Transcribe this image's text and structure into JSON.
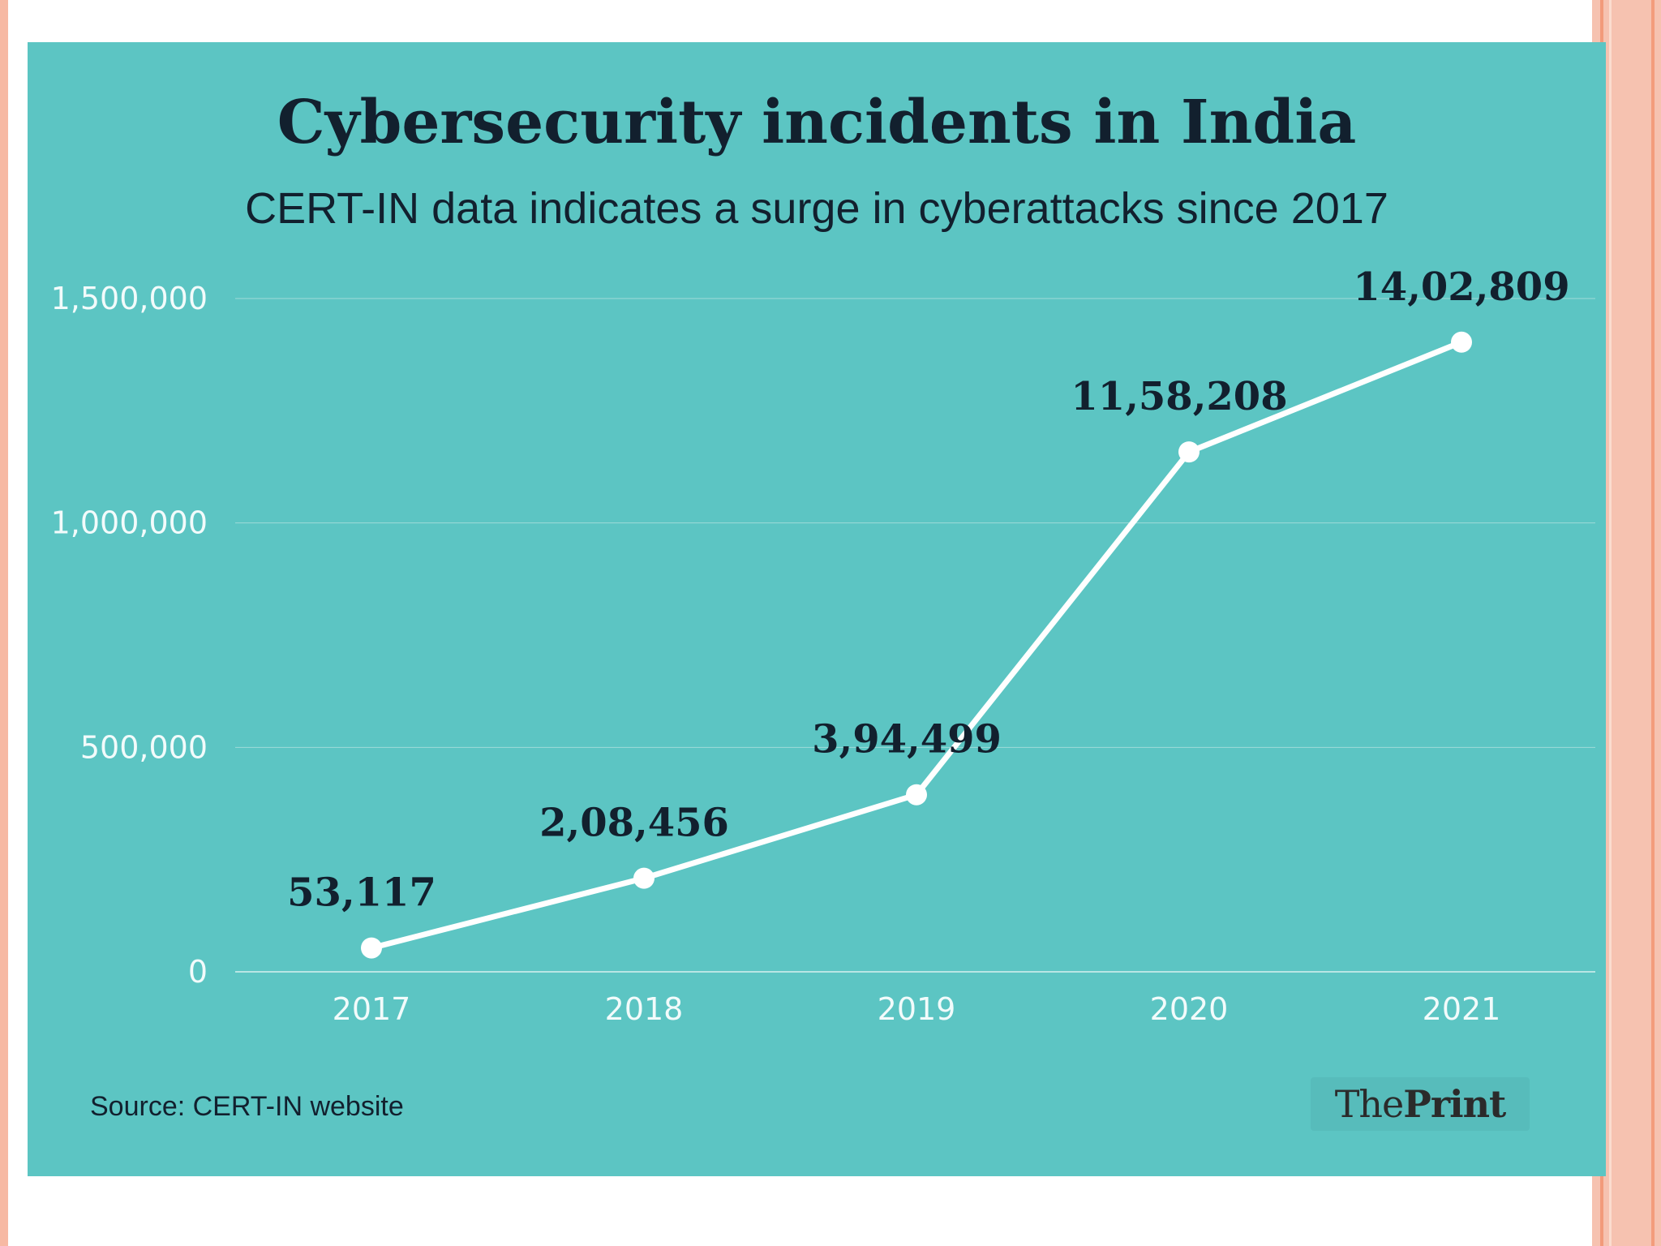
{
  "title": "Cybersecurity incidents in India",
  "subtitle": "CERT-IN data indicates a surge in cyberattacks since 2017",
  "source": "Source: CERT-IN website",
  "logo": {
    "part1": "The",
    "part2": "Print"
  },
  "colors": {
    "panel": "#5cc5c3",
    "text": "#12202e",
    "line": "#ffffff",
    "grid": "#9fdbd9",
    "axis_text": "#f2fbfb"
  },
  "chart_data": {
    "type": "line",
    "title": "Cybersecurity incidents in India",
    "subtitle": "CERT-IN data indicates a surge in cyberattacks since 2017",
    "categories": [
      "2017",
      "2018",
      "2019",
      "2020",
      "2021"
    ],
    "values": [
      53117,
      208456,
      394499,
      1158208,
      1402809
    ],
    "data_labels": [
      "53,117",
      "2,08,456",
      "3,94,499",
      "11,58,208",
      "14,02,809"
    ],
    "y_ticks": [
      0,
      500000,
      1000000,
      1500000
    ],
    "y_tick_labels": [
      "0",
      "500,000",
      "1,000,000",
      "1,500,000"
    ],
    "ylim": [
      0,
      1500000
    ],
    "xlabel": "",
    "ylabel": "",
    "grid": true,
    "legend": "none"
  }
}
